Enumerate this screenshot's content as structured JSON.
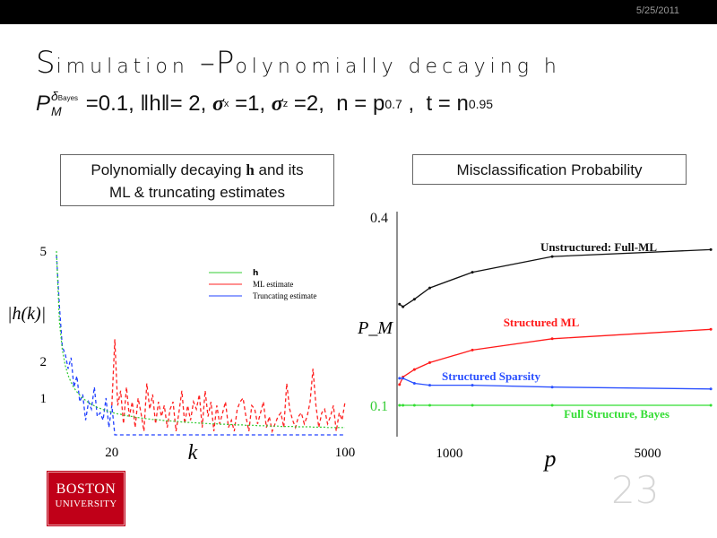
{
  "header": {
    "date": "5/25/2011"
  },
  "slide": {
    "title_s": "S",
    "title_rest1": "imulation ",
    "title_dash": "–",
    "title_p": "P",
    "title_rest2": "olynomially decaying h",
    "formula": {
      "pm": "P",
      "pm_sup": "δ",
      "pm_sup_sub": "Bayes",
      "pm_sub": "M",
      "part1": " =0.1, ‖h‖= 2, ",
      "sigma": "σ",
      "sub_x": "x",
      "part2": " =1, ",
      "sub_z": "z",
      "part3": " =2,  n = p",
      "exp1": "0.7",
      "part4": " ,  t = n",
      "exp2": "0.95"
    },
    "box_left_line1": "Polynomially decaying ",
    "box_left_bold": "h",
    "box_left_line1_end": " and its",
    "box_left_line2": "ML & truncating estimates",
    "box_right": "Misclassification Probability",
    "logo_line1": "BOSTON",
    "logo_line2": "UNIVERSITY",
    "page_number": "23"
  },
  "chart_data": [
    {
      "type": "line",
      "xlabel": "k",
      "ylabel": "|h(k)|",
      "xlim": [
        1,
        100
      ],
      "ylim": [
        0,
        5
      ],
      "xticks": [
        {
          "value": 20,
          "label": "20"
        },
        {
          "value": 100,
          "label": "100"
        }
      ],
      "yticks": [
        {
          "value": 5,
          "label": "5"
        },
        {
          "value": 2,
          "label": "2"
        },
        {
          "value": 1,
          "label": "1"
        }
      ],
      "legend_position": "top-right",
      "colors": {
        "h": "#33cc33",
        "ml": "#ff2020",
        "trunc": "#2040ff"
      },
      "series": [
        {
          "name": "h",
          "key": "h",
          "values": [
            5.0,
            3.08,
            2.32,
            1.89,
            1.62,
            1.43,
            1.28,
            1.17,
            1.08,
            1.0,
            0.94,
            0.88,
            0.83,
            0.79,
            0.75,
            0.72,
            0.69,
            0.66,
            0.64,
            0.61,
            0.59,
            0.57,
            0.56,
            0.54,
            0.52,
            0.51,
            0.5,
            0.48,
            0.47,
            0.46,
            0.45,
            0.44,
            0.43,
            0.42,
            0.42,
            0.41,
            0.4,
            0.39,
            0.38,
            0.38,
            0.37,
            0.37,
            0.36,
            0.35,
            0.35,
            0.34,
            0.34,
            0.33,
            0.33,
            0.32,
            0.32,
            0.31,
            0.31,
            0.3,
            0.3,
            0.3,
            0.29,
            0.29,
            0.29,
            0.28,
            0.28,
            0.28,
            0.27,
            0.27,
            0.27,
            0.26,
            0.26,
            0.26,
            0.26,
            0.25,
            0.25,
            0.25,
            0.25,
            0.24,
            0.24,
            0.24,
            0.24,
            0.23,
            0.23,
            0.23,
            0.23,
            0.23,
            0.22,
            0.22,
            0.22,
            0.22,
            0.22,
            0.22,
            0.21,
            0.21,
            0.21,
            0.21,
            0.21,
            0.2,
            0.2,
            0.2,
            0.2,
            0.2,
            0.2,
            0.2
          ]
        },
        {
          "name": "ML estimate",
          "key": "ml",
          "values": [
            4.9,
            3.5,
            2.4,
            2.2,
            1.8,
            2.1,
            1.3,
            1.6,
            0.9,
            1.1,
            0.4,
            0.9,
            0.7,
            1.3,
            0.5,
            0.6,
            0.4,
            1.0,
            0.2,
            0.8,
            2.6,
            0.8,
            1.2,
            0.3,
            1.3,
            0.5,
            0.9,
            0.2,
            1.0,
            0.6,
            0.1,
            1.4,
            0.7,
            1.1,
            0.3,
            0.9,
            0.5,
            0.8,
            0.2,
            0.7,
            0.9,
            0.1,
            0.6,
            1.2,
            0.3,
            0.8,
            0.4,
            0.9,
            0.7,
            1.1,
            0.2,
            1.2,
            0.5,
            0.9,
            0.1,
            0.8,
            0.3,
            0.6,
            0.9,
            0.2,
            0.4,
            0.1,
            0.7,
            0.9,
            1.0,
            0.5,
            0.1,
            0.8,
            0.7,
            0.3,
            0.6,
            0.9,
            0.2,
            0.5,
            0.1,
            0.3,
            0.5,
            0.6,
            0.2,
            1.4,
            0.7,
            0.4,
            0.2,
            0.5,
            0.6,
            0.3,
            0.5,
            0.9,
            1.8,
            0.8,
            0.2,
            0.6,
            0.7,
            0.3,
            0.5,
            0.8,
            0.1,
            0.6,
            0.4,
            0.9
          ]
        },
        {
          "name": "Truncating estimate",
          "key": "trunc",
          "values": [
            4.9,
            3.5,
            2.4,
            2.2,
            1.8,
            2.1,
            1.3,
            1.6,
            0.9,
            1.1,
            0.4,
            0.9,
            0.7,
            1.3,
            0.5,
            0.6,
            0.4,
            1.0,
            0.2,
            0.8,
            0,
            0,
            0,
            0,
            0,
            0,
            0,
            0,
            0,
            0,
            0,
            0,
            0,
            0,
            0,
            0,
            0,
            0,
            0,
            0,
            0,
            0,
            0,
            0,
            0,
            0,
            0,
            0,
            0,
            0,
            0,
            0,
            0,
            0,
            0,
            0,
            0,
            0,
            0,
            0,
            0,
            0,
            0,
            0,
            0,
            0,
            0,
            0,
            0,
            0,
            0,
            0,
            0,
            0,
            0,
            0,
            0,
            0,
            0,
            0,
            0,
            0,
            0,
            0,
            0,
            0,
            0,
            0,
            0,
            0,
            0,
            0,
            0,
            0,
            0,
            0,
            0,
            0,
            0,
            0
          ]
        }
      ]
    },
    {
      "type": "line",
      "xlabel": "p",
      "ylabel": "P_M",
      "xlim": [
        0,
        6400
      ],
      "ylim": [
        0.05,
        0.4
      ],
      "xticks": [
        {
          "value": 1000,
          "label": "1000"
        },
        {
          "value": 5000,
          "label": "5000"
        }
      ],
      "yticks": [
        {
          "value": 0.4,
          "label": "0.4",
          "color": "#111111"
        },
        {
          "value": 0.1,
          "label": "0.1",
          "color": "#33cc33"
        }
      ],
      "x": [
        50,
        120,
        350,
        660,
        1520,
        3130,
        6330
      ],
      "series": [
        {
          "name": "Unstructured: Full-ML",
          "color": "#111111",
          "values": [
            0.261,
            0.257,
            0.269,
            0.287,
            0.312,
            0.337,
            0.348
          ]
        },
        {
          "name": "Structured ML",
          "color": "#ff1a1a",
          "values": [
            0.133,
            0.145,
            0.157,
            0.168,
            0.188,
            0.206,
            0.221
          ]
        },
        {
          "name": "Structured Sparsity",
          "color": "#2b50ff",
          "values": [
            0.143,
            0.143,
            0.135,
            0.132,
            0.132,
            0.129,
            0.126
          ]
        },
        {
          "name": "Full Structure, Bayes",
          "color": "#33dd33",
          "values": [
            0.1,
            0.1,
            0.1,
            0.1,
            0.1,
            0.1,
            0.1
          ]
        }
      ]
    }
  ]
}
